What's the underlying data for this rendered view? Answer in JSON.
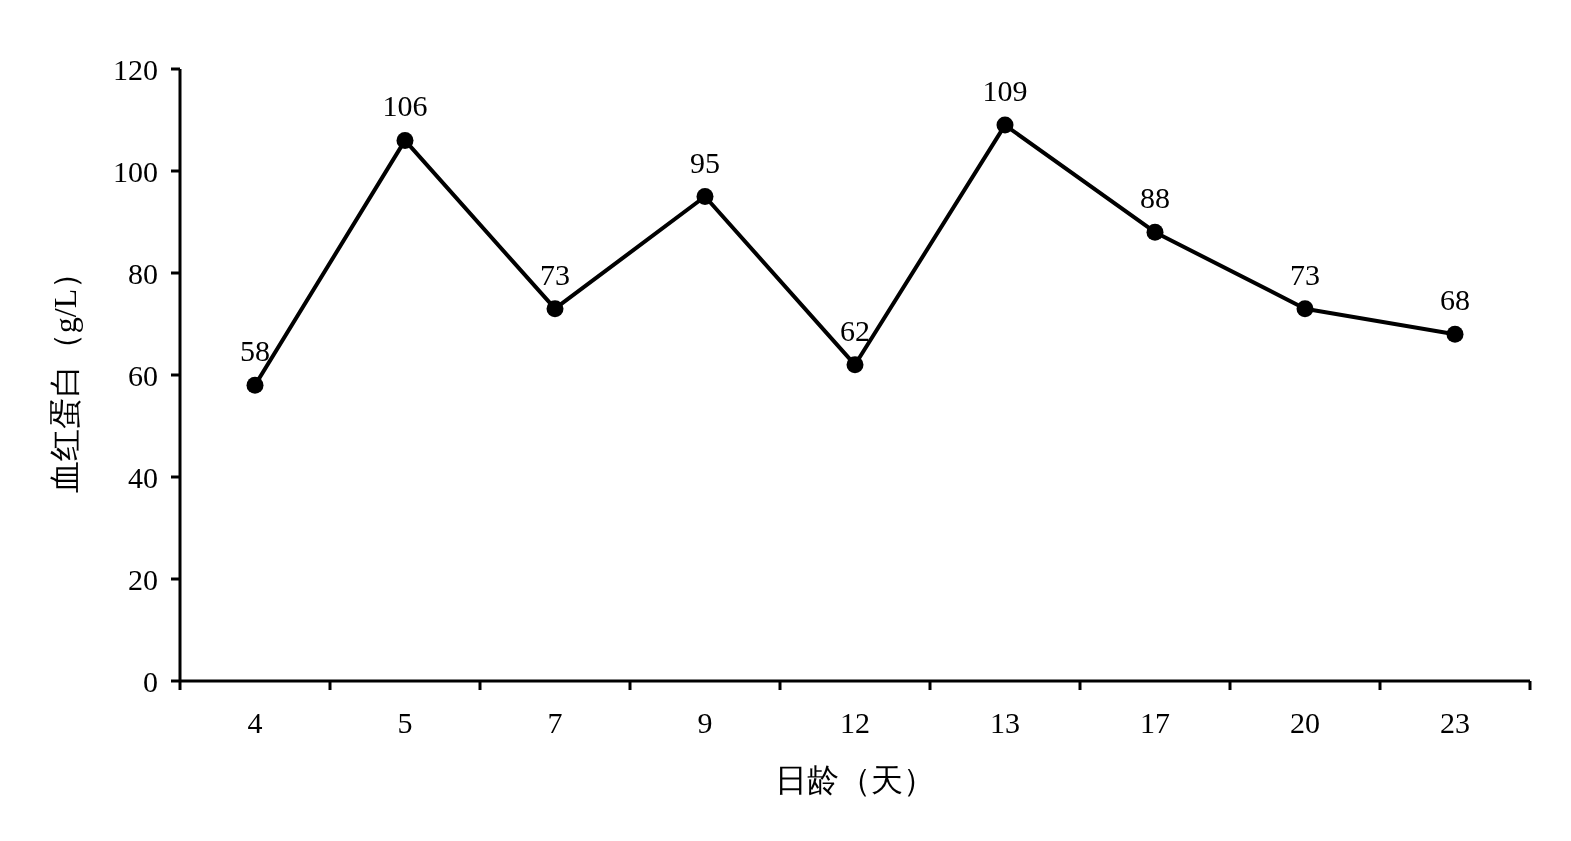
{
  "chart_data": {
    "type": "line",
    "xlabel": "日龄（天）",
    "ylabel": "血红蛋白（g/L）",
    "categories": [
      "4",
      "5",
      "7",
      "9",
      "12",
      "13",
      "17",
      "20",
      "23"
    ],
    "series": [
      {
        "color": "#000000",
        "values": [
          58,
          106,
          73,
          95,
          62,
          109,
          88,
          73,
          68
        ]
      }
    ],
    "ylim": [
      0,
      120
    ],
    "yticks": [
      0,
      20,
      40,
      60,
      80,
      100,
      120
    ],
    "grid": false,
    "marker": "circle",
    "line_style": "solid",
    "data_labels": true
  }
}
